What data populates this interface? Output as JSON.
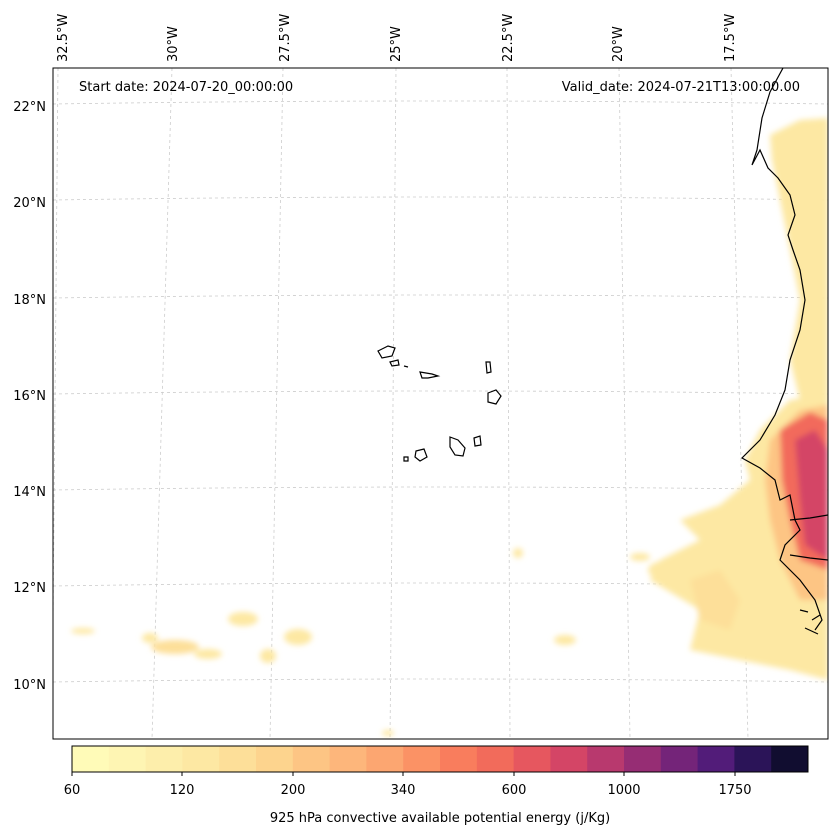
{
  "header": {
    "start_date": "Start date: 2024-07-20_00:00:00",
    "valid_date": "Valid_date: 2024-07-21T13:00:00.00"
  },
  "map": {
    "lon_labels": [
      "32.5°W",
      "30°W",
      "27.5°W",
      "25°W",
      "22.5°W",
      "20°W",
      "17.5°W"
    ],
    "lat_labels": [
      "22°N",
      "20°N",
      "18°N",
      "16°N",
      "14°N",
      "12°N",
      "10°N"
    ],
    "colors": {
      "coastline": "#000000",
      "gridline": "#cccccc"
    }
  },
  "colorbar": {
    "title": "925 hPa convective available potential energy (j/Kg)",
    "tick_labels": [
      "60",
      "120",
      "200",
      "340",
      "600",
      "1000",
      "1750"
    ],
    "colors": [
      "#fffbb8",
      "#fef5b3",
      "#fdeeab",
      "#fde8a3",
      "#fddf99",
      "#fdd48e",
      "#fdc584",
      "#fdb67b",
      "#fca671",
      "#fb9265",
      "#f97d5d",
      "#f26b5b",
      "#e6575f",
      "#d44566",
      "#b8396e",
      "#962d74",
      "#742479",
      "#521c79",
      "#2b1458",
      "#110d30"
    ]
  }
}
